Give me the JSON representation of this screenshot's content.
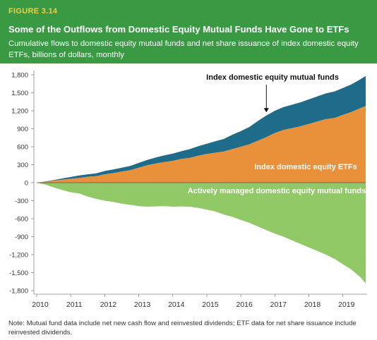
{
  "figure_label": "FIGURE 3.14",
  "title": "Some of the Outflows from Domestic Equity Mutual Funds Have Gone to ETFs",
  "subtitle": "Cumulative flows to domestic equity mutual funds and net share issuance of index domestic equity ETFs, billions of dollars, monthly",
  "note": "Note: Mutual fund data include net new cash flow and reinvested dividends; ETF data for net share issuance include reinvested dividends.",
  "colors": {
    "header_bg": "#3a9a43",
    "figure_label": "#f2cf3c",
    "index_mutual_funds": "#1f6b8a",
    "index_etfs": "#e8913a",
    "active_mutual_funds": "#90c966"
  },
  "chart_data": {
    "type": "area",
    "xlabel": "",
    "ylabel": "",
    "xlim": [
      2010.0,
      2019.67
    ],
    "ylim": [
      -1800,
      1800
    ],
    "y_ticks": [
      1800,
      1500,
      1200,
      900,
      600,
      300,
      0,
      -300,
      -600,
      -900,
      -1200,
      -1500,
      -1800
    ],
    "y_tick_labels": [
      "1,800",
      "1,500",
      "1,200",
      "900",
      "600",
      "300",
      "0",
      "-300",
      "-600",
      "-900",
      "-1,200",
      "-1,500",
      "-1,800"
    ],
    "x_ticks": [
      2010,
      2011,
      2012,
      2013,
      2014,
      2015,
      2016,
      2017,
      2018,
      2019
    ],
    "x_tick_labels": [
      "2010",
      "2011",
      "2012",
      "2013",
      "2014",
      "2015",
      "2016",
      "2017",
      "2018",
      "2019"
    ],
    "grid": false,
    "x": [
      2010.0,
      2010.25,
      2010.5,
      2010.75,
      2011.0,
      2011.25,
      2011.5,
      2011.75,
      2012.0,
      2012.25,
      2012.5,
      2012.75,
      2013.0,
      2013.25,
      2013.5,
      2013.75,
      2014.0,
      2014.25,
      2014.5,
      2014.75,
      2015.0,
      2015.25,
      2015.5,
      2015.75,
      2016.0,
      2016.25,
      2016.5,
      2016.75,
      2017.0,
      2017.25,
      2017.5,
      2017.75,
      2018.0,
      2018.25,
      2018.5,
      2018.75,
      2019.0,
      2019.25,
      2019.5,
      2019.67
    ],
    "series": [
      {
        "name": "Index domestic equity ETFs",
        "role": "stacked",
        "values": [
          0,
          15,
          35,
          50,
          65,
          80,
          100,
          110,
          140,
          160,
          185,
          210,
          250,
          290,
          320,
          345,
          365,
          395,
          415,
          450,
          480,
          500,
          520,
          560,
          600,
          640,
          700,
          760,
          830,
          880,
          910,
          940,
          980,
          1020,
          1060,
          1080,
          1130,
          1180,
          1240,
          1280
        ]
      },
      {
        "name": "Index domestic equity mutual funds",
        "role": "stacked",
        "values": [
          0,
          5,
          10,
          20,
          30,
          40,
          40,
          45,
          55,
          60,
          65,
          70,
          80,
          90,
          100,
          110,
          120,
          130,
          145,
          160,
          170,
          190,
          210,
          240,
          260,
          290,
          330,
          360,
          370,
          380,
          390,
          400,
          410,
          420,
          430,
          440,
          450,
          460,
          480,
          500
        ]
      },
      {
        "name": "Actively managed domestic equity mutual funds",
        "role": "negative",
        "values": [
          0,
          -30,
          -80,
          -120,
          -160,
          -180,
          -230,
          -270,
          -300,
          -320,
          -350,
          -370,
          -390,
          -400,
          -395,
          -390,
          -400,
          -395,
          -400,
          -420,
          -450,
          -480,
          -530,
          -570,
          -620,
          -670,
          -730,
          -790,
          -850,
          -900,
          -960,
          -1020,
          -1080,
          -1140,
          -1200,
          -1270,
          -1360,
          -1450,
          -1570,
          -1680
        ]
      }
    ],
    "annotations": [
      {
        "text": "Index domestic equity mutual funds",
        "target_x": 2016.75,
        "target_y": 1150
      }
    ]
  }
}
